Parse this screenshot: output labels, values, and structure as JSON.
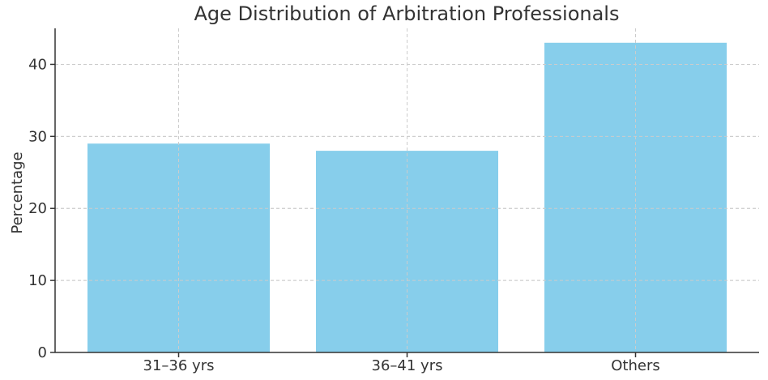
{
  "chart_data": {
    "type": "bar",
    "title": "Age Distribution of Arbitration Professionals",
    "xlabel": "",
    "ylabel": "Percentage",
    "categories": [
      "31–36 yrs",
      "36–41 yrs",
      "Others"
    ],
    "values": [
      29,
      28,
      43
    ],
    "ylim": [
      0,
      45
    ],
    "yticks": [
      0,
      10,
      20,
      30,
      40
    ],
    "grid": true,
    "bar_color": "#87CEEB"
  }
}
